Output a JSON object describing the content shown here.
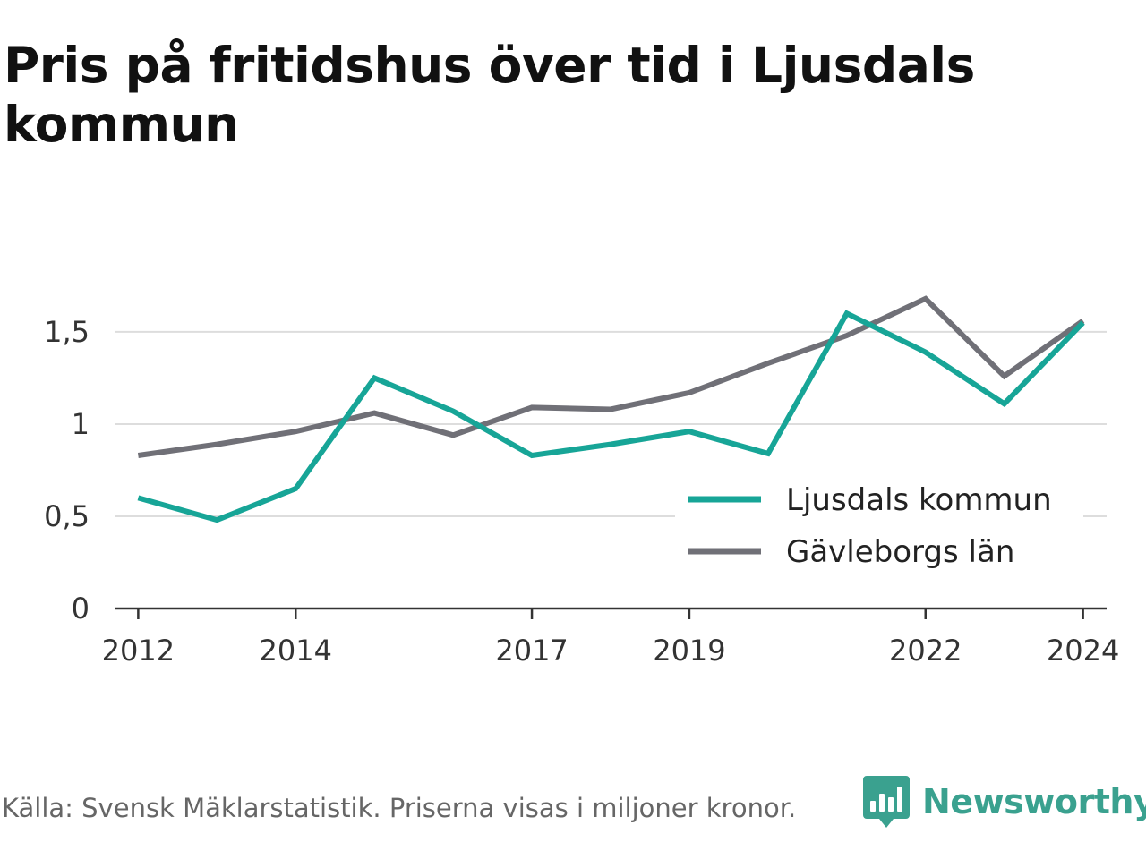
{
  "title": "Pris på fritidshus över tid i Ljusdals kommun",
  "footer": {
    "source": "Källa: Svensk Mäklarstatistik. Priserna visas i miljoner kronor.",
    "brand": "Newsworthy",
    "brand_icon": "bar-chart-speech-bubble-icon",
    "brand_color": "#3aa18f"
  },
  "chart_data": {
    "type": "line",
    "title": "Pris på fritidshus över tid i Ljusdals kommun",
    "xlabel": "",
    "ylabel": "",
    "x": [
      2012,
      2013,
      2014,
      2015,
      2016,
      2017,
      2018,
      2019,
      2020,
      2021,
      2022,
      2023,
      2024
    ],
    "x_ticks": [
      2012,
      2014,
      2017,
      2019,
      2022,
      2024
    ],
    "x_tick_labels": [
      "2012",
      "2014",
      "2017",
      "2019",
      "2022",
      "2024"
    ],
    "y_ticks": [
      0,
      0.5,
      1,
      1.5
    ],
    "y_tick_labels": [
      "0",
      "0,5",
      "1",
      "1,5"
    ],
    "xlim": [
      2011.7,
      2024.3
    ],
    "ylim": [
      0,
      1.65
    ],
    "grid": true,
    "legend_position": "bottom-right",
    "series": [
      {
        "name": "Ljusdals kommun",
        "color": "#17a597",
        "values": [
          0.6,
          0.48,
          0.65,
          1.25,
          1.07,
          0.83,
          0.89,
          0.96,
          0.84,
          1.6,
          1.39,
          1.11,
          1.55
        ]
      },
      {
        "name": "Gävleborgs län",
        "color": "#707077",
        "values": [
          0.83,
          0.89,
          0.96,
          1.06,
          0.94,
          1.09,
          1.08,
          1.17,
          1.33,
          1.48,
          1.68,
          1.26,
          1.56
        ]
      }
    ]
  }
}
